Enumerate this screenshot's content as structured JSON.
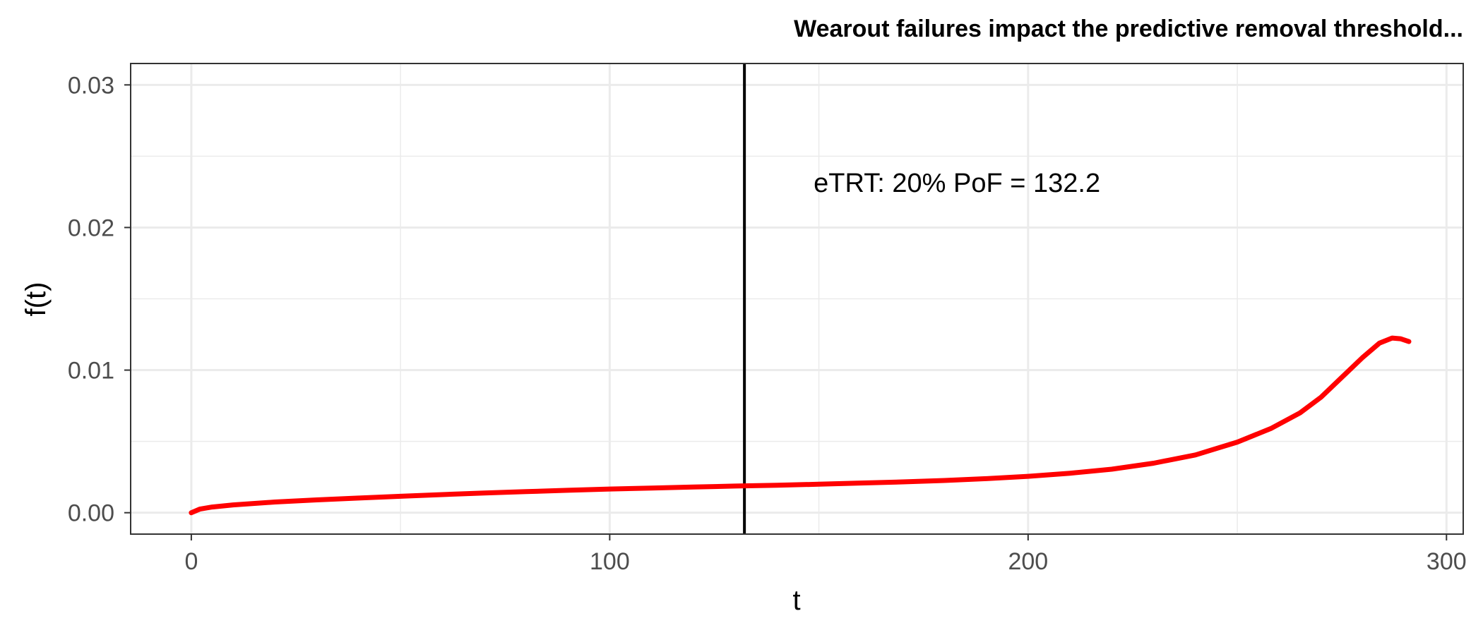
{
  "chart_data": {
    "type": "line",
    "title": "Wearout failures impact the predictive removal threshold...",
    "xlabel": "t",
    "ylabel": "f(t)",
    "xlim": [
      -14.5,
      304
    ],
    "ylim": [
      -0.0015,
      0.0315
    ],
    "x_ticks": [
      0,
      100,
      200,
      300
    ],
    "y_ticks": [
      0.0,
      0.01,
      0.02,
      0.03
    ],
    "x_tick_labels": [
      "0",
      "100",
      "200",
      "300"
    ],
    "y_tick_labels": [
      "0.00",
      "0.01",
      "0.02",
      "0.03"
    ],
    "grid": true,
    "series": [
      {
        "color": "#ff0000",
        "points": [
          [
            0,
            0.0
          ],
          [
            2,
            0.00025
          ],
          [
            5,
            0.0004
          ],
          [
            10,
            0.00055
          ],
          [
            20,
            0.00075
          ],
          [
            30,
            0.0009
          ],
          [
            40,
            0.00103
          ],
          [
            50,
            0.00115
          ],
          [
            60,
            0.00127
          ],
          [
            70,
            0.00138
          ],
          [
            80,
            0.00148
          ],
          [
            90,
            0.00157
          ],
          [
            100,
            0.00166
          ],
          [
            110,
            0.00173
          ],
          [
            120,
            0.0018
          ],
          [
            130,
            0.00187
          ],
          [
            140,
            0.00193
          ],
          [
            150,
            0.002
          ],
          [
            160,
            0.00208
          ],
          [
            170,
            0.00216
          ],
          [
            180,
            0.00226
          ],
          [
            190,
            0.00239
          ],
          [
            200,
            0.00255
          ],
          [
            210,
            0.00277
          ],
          [
            220,
            0.00305
          ],
          [
            230,
            0.00347
          ],
          [
            240,
            0.00405
          ],
          [
            250,
            0.00495
          ],
          [
            258,
            0.0059
          ],
          [
            265,
            0.007
          ],
          [
            270,
            0.0081
          ],
          [
            275,
            0.0095
          ],
          [
            280,
            0.0109
          ],
          [
            284,
            0.0119
          ],
          [
            287,
            0.01225
          ],
          [
            289,
            0.0122
          ],
          [
            291,
            0.012
          ]
        ]
      }
    ],
    "vline": {
      "x": 132.2,
      "color": "#000000",
      "label": "eTRT: 20% PoF = 132.2",
      "label_x": 183,
      "label_y": 0.0225
    }
  }
}
